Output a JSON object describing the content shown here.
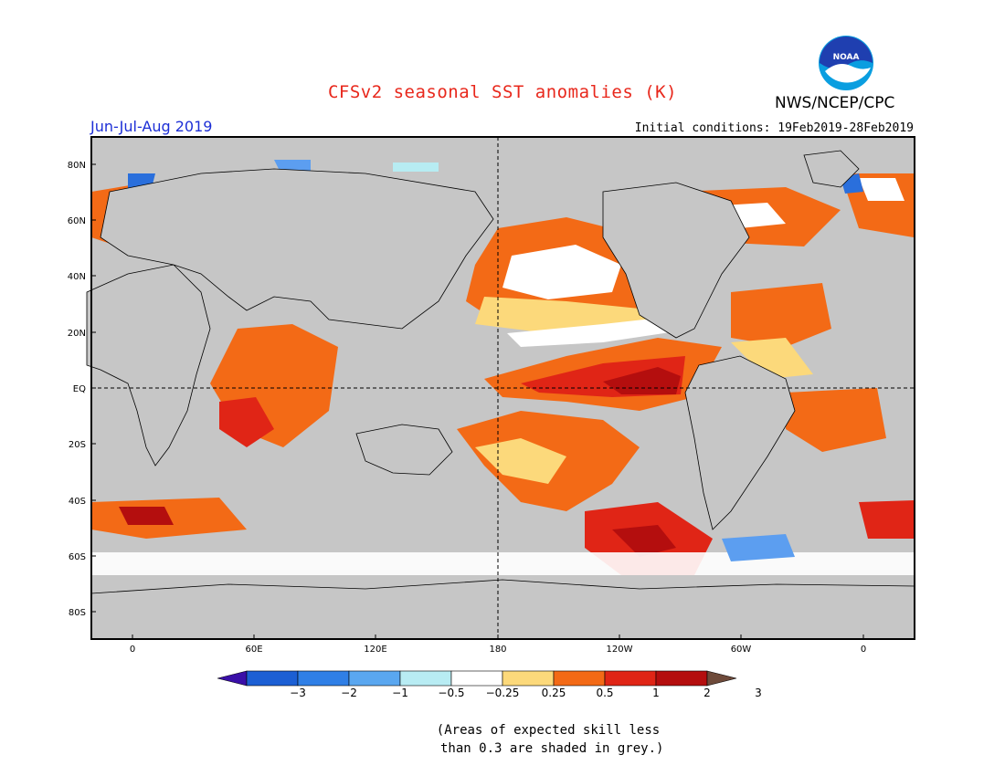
{
  "header": {
    "title": "CFSv2 seasonal SST anomalies (K)",
    "agency": "NWS/NCEP/CPC",
    "season": "Jun-Jul-Aug 2019",
    "initial_conditions": "Initial conditions: 19Feb2019-28Feb2019",
    "logo_text": "NOAA"
  },
  "map": {
    "lat_labels": [
      "80N",
      "60N",
      "40N",
      "20N",
      "EQ",
      "20S",
      "40S",
      "60S",
      "80S"
    ],
    "lon_labels": [
      "0",
      "60E",
      "120E",
      "180",
      "120W",
      "60W",
      "0"
    ],
    "colors": {
      "ocean_grey": "#c6c6c6",
      "neutral": "#ffffff",
      "light_pos": "#fcd97b",
      "pos": "#f36a16",
      "strong_pos": "#e02516",
      "very_strong_pos": "#b40e0e",
      "light_neg": "#b7ecf2",
      "neg": "#5c9ef0",
      "strong_neg": "#2a6fdc"
    }
  },
  "colorbar": {
    "labels": [
      "−3",
      "−2",
      "−1",
      "−0.5",
      "−0.25",
      "0.25",
      "0.5",
      "1",
      "2",
      "3"
    ],
    "colors": [
      "#3a0fa8",
      "#1c5fd4",
      "#2f7fe6",
      "#5aa7f0",
      "#b8ecf3",
      "#ffffff",
      "#fcd97b",
      "#f36a16",
      "#e02516",
      "#b40e0e",
      "#6e4a3a"
    ]
  },
  "note": "(Areas of expected skill less\n than 0.3 are shaded in grey.)"
}
